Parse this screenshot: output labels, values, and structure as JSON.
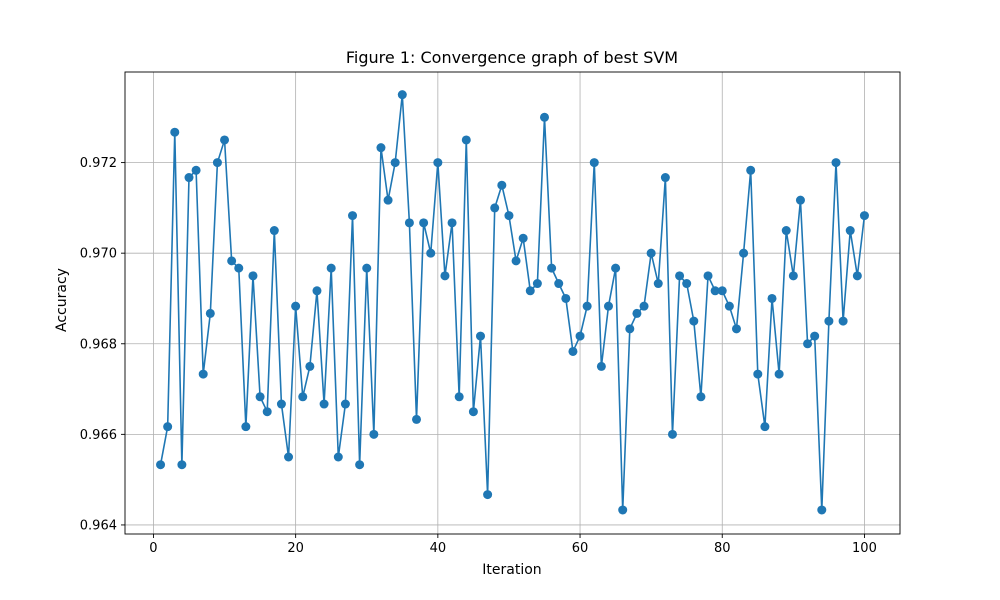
{
  "chart_data": {
    "type": "line",
    "title": "Figure 1: Convergence graph of best SVM",
    "xlabel": "Iteration",
    "ylabel": "Accuracy",
    "xlim": [
      -4,
      105
    ],
    "ylim": [
      0.9638,
      0.974
    ],
    "xticks": [
      0,
      20,
      40,
      60,
      80,
      100
    ],
    "xtick_labels": [
      "0",
      "20",
      "40",
      "60",
      "80",
      "100"
    ],
    "yticks": [
      0.964,
      0.966,
      0.968,
      0.97,
      0.972
    ],
    "ytick_labels": [
      "0.964",
      "0.966",
      "0.968",
      "0.970",
      "0.972"
    ],
    "grid": true,
    "legend": "none",
    "line_color": "#1f77b4",
    "marker": "circle",
    "series": [
      {
        "x": [
          1,
          2,
          3,
          4,
          5,
          6,
          7,
          8,
          9,
          10,
          11,
          12,
          13,
          14,
          15,
          16,
          17,
          18,
          19,
          20,
          21,
          22,
          23,
          24,
          25,
          26,
          27,
          28,
          29,
          30,
          31,
          32,
          33,
          34,
          35,
          36,
          37,
          38,
          39,
          40,
          41,
          42,
          43,
          44,
          45,
          46,
          47,
          48,
          49,
          50,
          51,
          52,
          53,
          54,
          55,
          56,
          57,
          58,
          59,
          60,
          61,
          62,
          63,
          64,
          65,
          66,
          67,
          68,
          69,
          70,
          71,
          72,
          73,
          74,
          75,
          76,
          77,
          78,
          79,
          80,
          81,
          82,
          83,
          84,
          85,
          86,
          87,
          88,
          89,
          90,
          91,
          92,
          93,
          94,
          95,
          96,
          97,
          98,
          99,
          100
        ],
        "y": [
          0.96533,
          0.96617,
          0.97267,
          0.96533,
          0.97167,
          0.97183,
          0.96733,
          0.96867,
          0.972,
          0.9725,
          0.96983,
          0.96967,
          0.96617,
          0.9695,
          0.96683,
          0.9665,
          0.9705,
          0.96667,
          0.9655,
          0.96883,
          0.96683,
          0.9675,
          0.96917,
          0.96667,
          0.96967,
          0.9655,
          0.96667,
          0.97083,
          0.96533,
          0.96967,
          0.966,
          0.97233,
          0.97117,
          0.972,
          0.9735,
          0.97067,
          0.96633,
          0.97067,
          0.97,
          0.972,
          0.9695,
          0.97067,
          0.96683,
          0.9725,
          0.9665,
          0.96817,
          0.96467,
          0.971,
          0.9715,
          0.97083,
          0.96983,
          0.97033,
          0.96917,
          0.96933,
          0.973,
          0.96967,
          0.96933,
          0.969,
          0.96783,
          0.96817,
          0.96883,
          0.972,
          0.9675,
          0.96883,
          0.96967,
          0.96433,
          0.96833,
          0.96867,
          0.96883,
          0.97,
          0.96933,
          0.97167,
          0.966,
          0.9695,
          0.96933,
          0.9685,
          0.96683,
          0.9695,
          0.96917,
          0.96917,
          0.96883,
          0.96833,
          0.97,
          0.97183,
          0.96733,
          0.96617,
          0.969,
          0.96733,
          0.9705,
          0.9695,
          0.97117,
          0.968,
          0.96817,
          0.96433,
          0.9685,
          0.972,
          0.9685,
          0.9705,
          0.9695,
          0.97083
        ]
      }
    ]
  }
}
